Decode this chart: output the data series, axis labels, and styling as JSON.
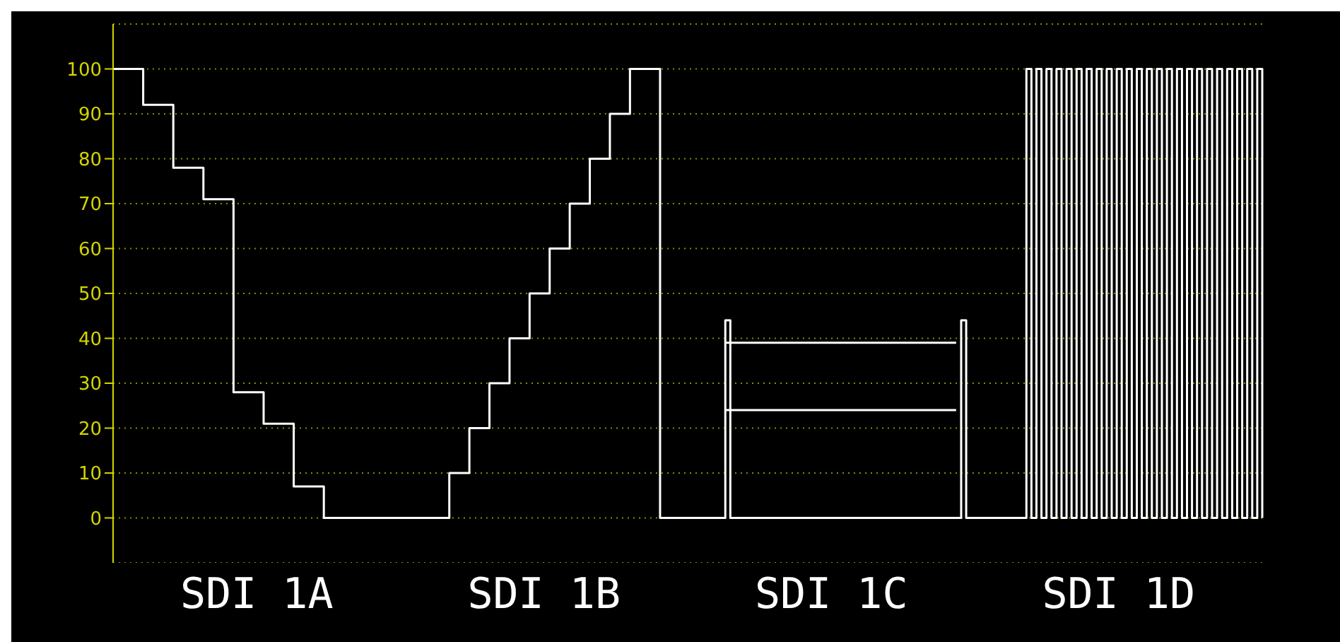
{
  "chart_data": {
    "type": "step",
    "categories": [
      null,
      null,
      null,
      null,
      null,
      null,
      null,
      null,
      null,
      null,
      null,
      null,
      null,
      null,
      null,
      null,
      null,
      null,
      null,
      null,
      null,
      null,
      null,
      null,
      null,
      null,
      null,
      null,
      null,
      null,
      null,
      null,
      null,
      null,
      null,
      null,
      null,
      null,
      null,
      null,
      null,
      null,
      null,
      null,
      null,
      null,
      null,
      null,
      null,
      null,
      null,
      null,
      null,
      null,
      null,
      null,
      null,
      null,
      null,
      null,
      null,
      null,
      null,
      null,
      null,
      null,
      null,
      null,
      null,
      null,
      null,
      null,
      null,
      null,
      null,
      null,
      null,
      null,
      null,
      null,
      null,
      null,
      null,
      null,
      null,
      null,
      null,
      null,
      null,
      null,
      null,
      null,
      null,
      null,
      null,
      null,
      null,
      null,
      null,
      null,
      null,
      null,
      null,
      null,
      null,
      null,
      null,
      null,
      null,
      null,
      null,
      null,
      null,
      null,
      null,
      null,
      null,
      null,
      null,
      null,
      null,
      null,
      null,
      null,
      null,
      null,
      null,
      null,
      null,
      null,
      null,
      null,
      null,
      null,
      null,
      null,
      null,
      null,
      null,
      null,
      null,
      null,
      null,
      null,
      null,
      null,
      null,
      null,
      null,
      null,
      null,
      null,
      null,
      null,
      null,
      null,
      null,
      null,
      null,
      null,
      null,
      null,
      null,
      null,
      null,
      null,
      null,
      null,
      null,
      null,
      null,
      null,
      null,
      null,
      null,
      null,
      null,
      null,
      null,
      null,
      null,
      null,
      null,
      null,
      null,
      null,
      null,
      null,
      null,
      null,
      null,
      null,
      null,
      null,
      null,
      null,
      null,
      null,
      null,
      null,
      null,
      null,
      null,
      null,
      null,
      null,
      null,
      null,
      null,
      null,
      null,
      null,
      null,
      null,
      null,
      null,
      null,
      null,
      null,
      null,
      null,
      null,
      null,
      null,
      null,
      null,
      null,
      null,
      null,
      null
    ],
    "series": [
      {
        "color": "#ffffff",
        "values": [
          100,
          100,
          100,
          100,
          100,
          100,
          92,
          92,
          92,
          92,
          92,
          92,
          78,
          78,
          78,
          78,
          78,
          78,
          71,
          71,
          71,
          71,
          71,
          71,
          28,
          28,
          28,
          28,
          28,
          28,
          21,
          21,
          21,
          21,
          21,
          21,
          7,
          7,
          7,
          7,
          7,
          7,
          0,
          0,
          0,
          0,
          0,
          0,
          0,
          0,
          0,
          0,
          0,
          0,
          0,
          0,
          0,
          0,
          0,
          0,
          0,
          0,
          0,
          0,
          0,
          0,
          0,
          10,
          10,
          10,
          10,
          20,
          20,
          20,
          20,
          30,
          30,
          30,
          30,
          40,
          40,
          40,
          40,
          50,
          50,
          50,
          50,
          60,
          60,
          60,
          60,
          70,
          70,
          70,
          70,
          80,
          80,
          80,
          80,
          90,
          90,
          90,
          90,
          100,
          100,
          100,
          100,
          100,
          100,
          0,
          0,
          0,
          0,
          0,
          0,
          0,
          0,
          0,
          0,
          0,
          0,
          0,
          44,
          0,
          0,
          0,
          0,
          0,
          0,
          0,
          0,
          0,
          0,
          0,
          0,
          0,
          0,
          0,
          0,
          0,
          0,
          0,
          0,
          0,
          0,
          0,
          0,
          0,
          0,
          0,
          0,
          0,
          0,
          0,
          0,
          0,
          0,
          0,
          0,
          0,
          0,
          0,
          0,
          0,
          0,
          0,
          0,
          0,
          0,
          44,
          0,
          0,
          0,
          0,
          0,
          0,
          0,
          0,
          0,
          0,
          0,
          0,
          100,
          0,
          100,
          0,
          100,
          0,
          100,
          0,
          100,
          0,
          100,
          0,
          100,
          0,
          100,
          0,
          100,
          0,
          100,
          0,
          100,
          0,
          100,
          0,
          100,
          0,
          100,
          0,
          100,
          0,
          100,
          0,
          100,
          0,
          100,
          0,
          100,
          0,
          100,
          0,
          100,
          0,
          100,
          0,
          100,
          0,
          100,
          0
        ]
      },
      {
        "color": "#ffffff",
        "values": [
          null,
          null,
          null,
          null,
          null,
          null,
          null,
          null,
          null,
          null,
          null,
          null,
          null,
          null,
          null,
          null,
          null,
          null,
          null,
          null,
          null,
          null,
          null,
          null,
          null,
          null,
          null,
          null,
          null,
          null,
          null,
          null,
          null,
          null,
          null,
          null,
          null,
          null,
          null,
          null,
          null,
          null,
          null,
          null,
          null,
          null,
          null,
          null,
          null,
          null,
          null,
          null,
          null,
          null,
          null,
          null,
          null,
          null,
          null,
          null,
          null,
          null,
          null,
          null,
          null,
          null,
          null,
          null,
          null,
          null,
          null,
          null,
          null,
          null,
          null,
          null,
          null,
          null,
          null,
          null,
          null,
          null,
          null,
          null,
          null,
          null,
          null,
          null,
          null,
          null,
          null,
          null,
          null,
          null,
          null,
          null,
          null,
          null,
          null,
          null,
          null,
          null,
          null,
          null,
          null,
          null,
          null,
          null,
          null,
          null,
          null,
          null,
          null,
          null,
          null,
          null,
          null,
          null,
          null,
          null,
          null,
          null,
          39,
          39,
          39,
          39,
          39,
          39,
          39,
          39,
          39,
          39,
          39,
          39,
          39,
          39,
          39,
          39,
          39,
          39,
          39,
          39,
          39,
          39,
          39,
          39,
          39,
          39,
          39,
          39,
          39,
          39,
          39,
          39,
          39,
          39,
          39,
          39,
          39,
          39,
          39,
          39,
          39,
          39,
          39,
          39,
          39,
          39,
          39,
          null,
          null,
          null,
          null,
          null,
          null,
          null,
          null,
          null,
          null,
          null,
          null,
          null,
          null,
          null,
          null,
          null,
          null,
          null,
          null,
          null,
          null,
          null,
          null,
          null,
          null,
          null,
          null,
          null,
          null,
          null,
          null,
          null,
          null,
          null,
          null,
          null,
          null,
          null,
          null,
          null,
          null,
          null,
          null,
          null,
          null,
          null,
          null,
          null,
          null,
          null,
          null,
          null,
          null,
          null,
          null,
          null,
          null,
          null,
          null,
          null
        ]
      },
      {
        "color": "#ffffff",
        "values": [
          null,
          null,
          null,
          null,
          null,
          null,
          null,
          null,
          null,
          null,
          null,
          null,
          null,
          null,
          null,
          null,
          null,
          null,
          null,
          null,
          null,
          null,
          null,
          null,
          null,
          null,
          null,
          null,
          null,
          null,
          null,
          null,
          null,
          null,
          null,
          null,
          null,
          null,
          null,
          null,
          null,
          null,
          null,
          null,
          null,
          null,
          null,
          null,
          null,
          null,
          null,
          null,
          null,
          null,
          null,
          null,
          null,
          null,
          null,
          null,
          null,
          null,
          null,
          null,
          null,
          null,
          null,
          null,
          null,
          null,
          null,
          null,
          null,
          null,
          null,
          null,
          null,
          null,
          null,
          null,
          null,
          null,
          null,
          null,
          null,
          null,
          null,
          null,
          null,
          null,
          null,
          null,
          null,
          null,
          null,
          null,
          null,
          null,
          null,
          null,
          null,
          null,
          null,
          null,
          null,
          null,
          null,
          null,
          null,
          null,
          null,
          null,
          null,
          null,
          null,
          null,
          null,
          null,
          null,
          null,
          null,
          null,
          24,
          24,
          24,
          24,
          24,
          24,
          24,
          24,
          24,
          24,
          24,
          24,
          24,
          24,
          24,
          24,
          24,
          24,
          24,
          24,
          24,
          24,
          24,
          24,
          24,
          24,
          24,
          24,
          24,
          24,
          24,
          24,
          24,
          24,
          24,
          24,
          24,
          24,
          24,
          24,
          24,
          24,
          24,
          24,
          24,
          24,
          24,
          null,
          null,
          null,
          null,
          null,
          null,
          null,
          null,
          null,
          null,
          null,
          null,
          null,
          null,
          null,
          null,
          null,
          null,
          null,
          null,
          null,
          null,
          null,
          null,
          null,
          null,
          null,
          null,
          null,
          null,
          null,
          null,
          null,
          null,
          null,
          null,
          null,
          null,
          null,
          null,
          null,
          null,
          null,
          null,
          null,
          null,
          null,
          null,
          null,
          null,
          null,
          null,
          null,
          null,
          null,
          null,
          null,
          null,
          null,
          null,
          null
        ]
      }
    ],
    "ylim": [
      -10,
      110
    ],
    "yticks": [
      0,
      10,
      20,
      30,
      40,
      50,
      60,
      70,
      80,
      90,
      100
    ],
    "grid": "y",
    "tick_labels": "y",
    "annotations": [
      "SDI 1A",
      "SDI 1B",
      "SDI 1C",
      "SDI 1D"
    ]
  }
}
